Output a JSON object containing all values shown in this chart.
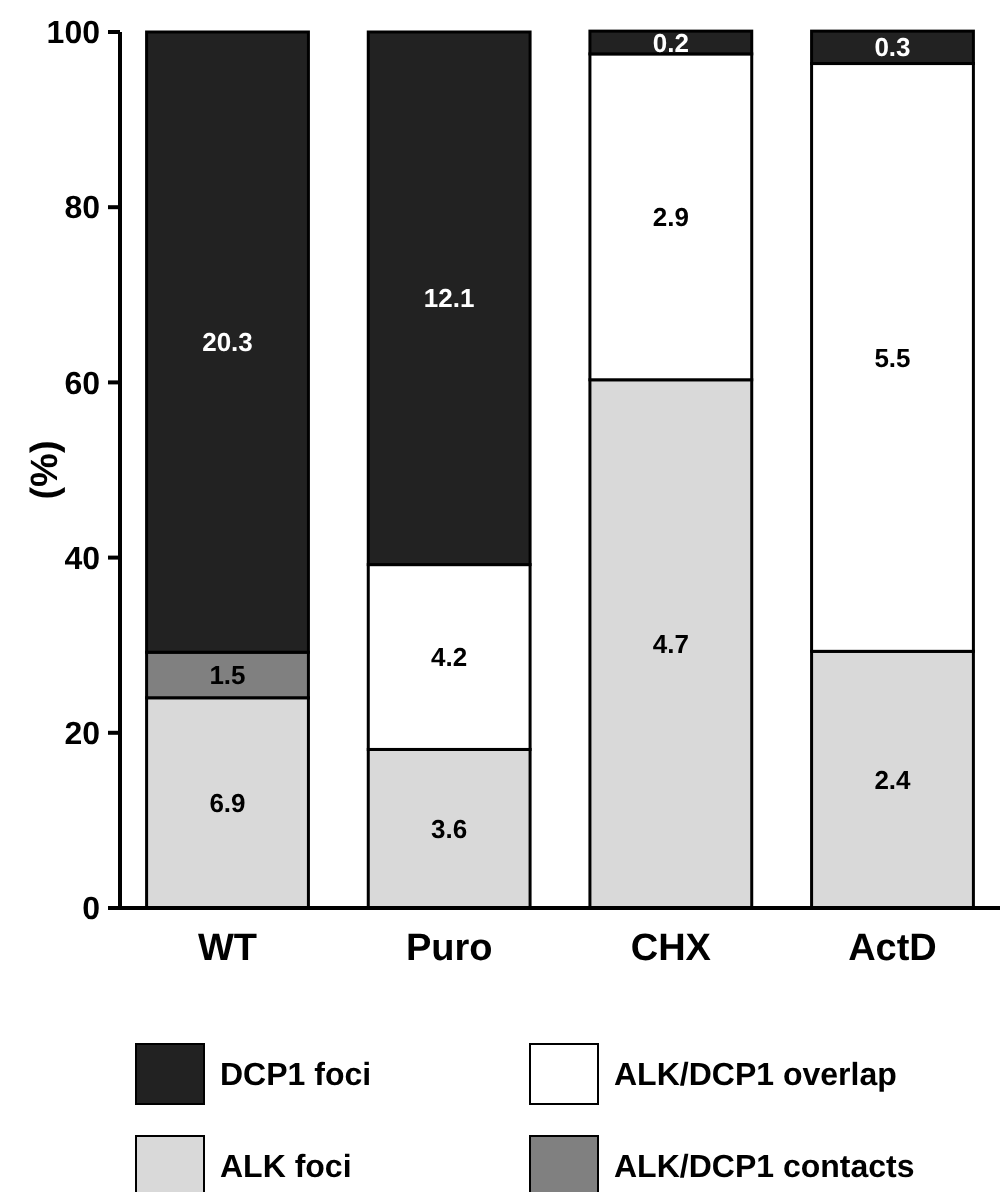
{
  "chart_data": {
    "type": "bar",
    "stacked": true,
    "ylabel": "(%)",
    "categories": [
      "WT",
      "Puro",
      "CHX",
      "ActD"
    ],
    "ylim": [
      0,
      100
    ],
    "yticks": [
      0,
      20,
      40,
      60,
      80,
      100
    ],
    "grid": false,
    "legend": "bottom",
    "series": [
      {
        "name": "ALK foci",
        "color": "#d9d9d9",
        "values": [
          24.0,
          18.1,
          60.3,
          29.3
        ]
      },
      {
        "name": "ALK/DCP1 contacts",
        "color": "#808080",
        "values": [
          5.2,
          0,
          0,
          0
        ]
      },
      {
        "name": "ALK/DCP1 overlap",
        "color": "#ffffff",
        "values": [
          0,
          21.1,
          37.2,
          67.1
        ]
      },
      {
        "name": "DCP1 foci",
        "color": "#222222",
        "values": [
          70.8,
          60.8,
          2.6,
          3.7
        ]
      }
    ],
    "annotations": [
      "6.9",
      "1.5",
      "20.3",
      "3.6",
      "4.2",
      "12.1",
      "4.7",
      "2.9",
      "0.2",
      "2.4",
      "5.5",
      "0.3"
    ]
  }
}
